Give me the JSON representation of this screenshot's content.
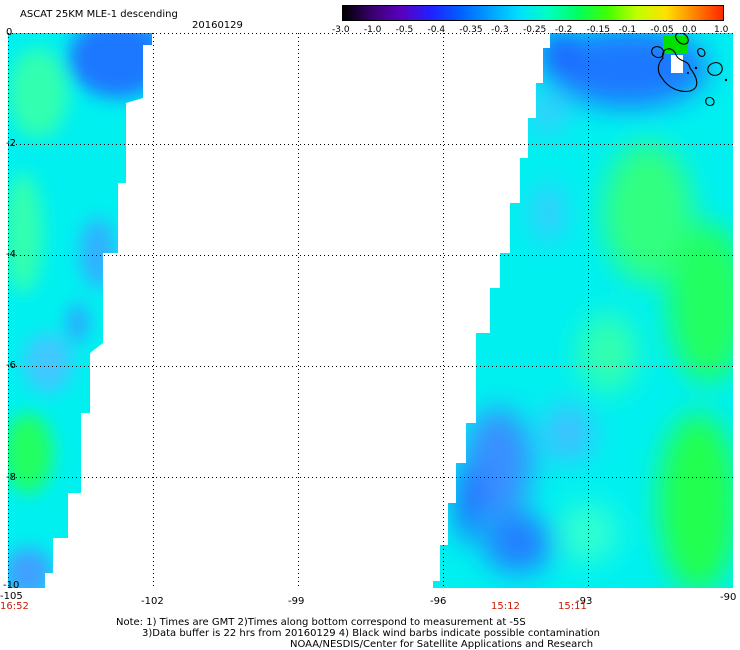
{
  "header": {
    "title": "ASCAT 25KM MLE-1 descending",
    "date": "20160129"
  },
  "colorbar": {
    "labels": [
      "-3.0",
      "-1.0",
      "-0.5",
      "-0.4",
      "-0.35",
      "-0.3",
      "-0.25",
      "-0.2",
      "-0.15",
      "-0.1",
      "-0.05",
      "0.0",
      "1.0"
    ],
    "colors": [
      "#000000",
      "#3a0070",
      "#5a00c0",
      "#2020ff",
      "#0060ff",
      "#00a0ff",
      "#00e0ff",
      "#00ffc0",
      "#00ff60",
      "#40ff00",
      "#c0ff00",
      "#ffe000",
      "#ff8000",
      "#ff2000"
    ]
  },
  "map": {
    "lat_labels": [
      "0",
      "-2",
      "-4",
      "-6",
      "-8",
      "-10"
    ],
    "lon_labels": [
      "-105",
      "-102",
      "-99",
      "-96",
      "-93",
      "-90"
    ],
    "time_labels": [
      "16:52",
      "15:12",
      "15:11"
    ],
    "colors": {
      "swath_base": "#00f0f0",
      "blue": "#1a78ff",
      "green": "#20ff60",
      "deep_blue": "#0040e0"
    }
  },
  "notes": {
    "line1": "Note: 1) Times are GMT 2)Times along bottom correspond to measurement at -5S",
    "line2": "3)Data buffer is 22 hrs from 20160129 4) Black wind barbs indicate possible contamination",
    "line3": "NOAA/NESDIS/Center for Satellite Applications and Research"
  }
}
